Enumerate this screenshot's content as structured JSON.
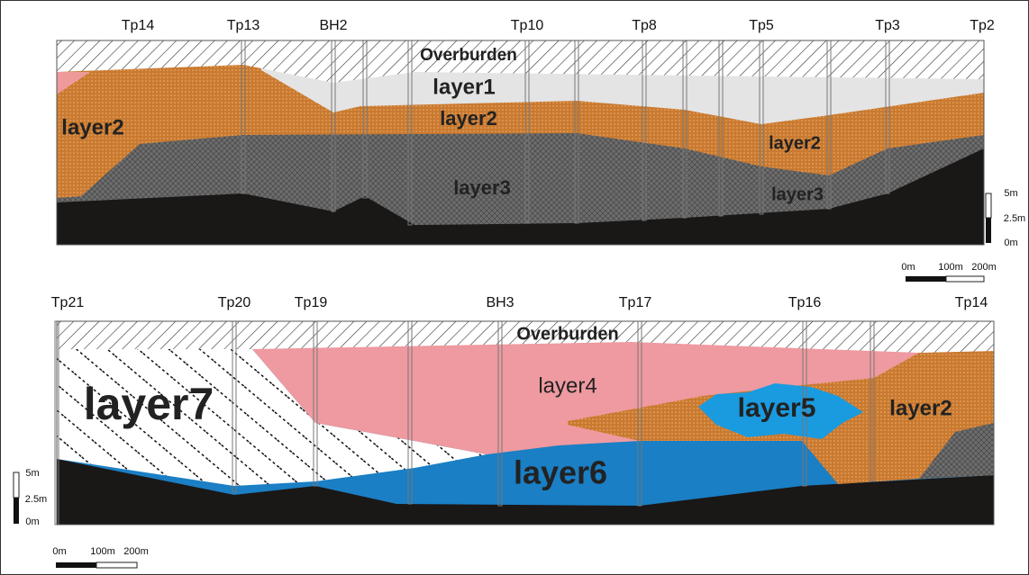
{
  "sections": [
    {
      "boreholes": [
        "Tp14",
        "Tp13",
        "BH2",
        "Tp10",
        "Tp8",
        "Tp5",
        "Tp3",
        "Tp2"
      ],
      "layers": [
        "Overburden",
        "layer1",
        "layer2",
        "layer2",
        "layer2",
        "layer3",
        "layer3"
      ],
      "scale": {
        "vertical": [
          "5m",
          "2.5m",
          "0m"
        ],
        "horizontal": [
          "0m",
          "100m",
          "200m"
        ]
      }
    },
    {
      "boreholes": [
        "Tp21",
        "Tp20",
        "Tp19",
        "BH3",
        "Tp17",
        "Tp16",
        "Tp14"
      ],
      "layers": [
        "Overburden",
        "layer7",
        "layer4",
        "layer5",
        "layer2",
        "layer6"
      ],
      "scale": {
        "vertical": [
          "5m",
          "2.5m",
          "0m"
        ],
        "horizontal": [
          "0m",
          "100m",
          "200m"
        ]
      }
    }
  ]
}
